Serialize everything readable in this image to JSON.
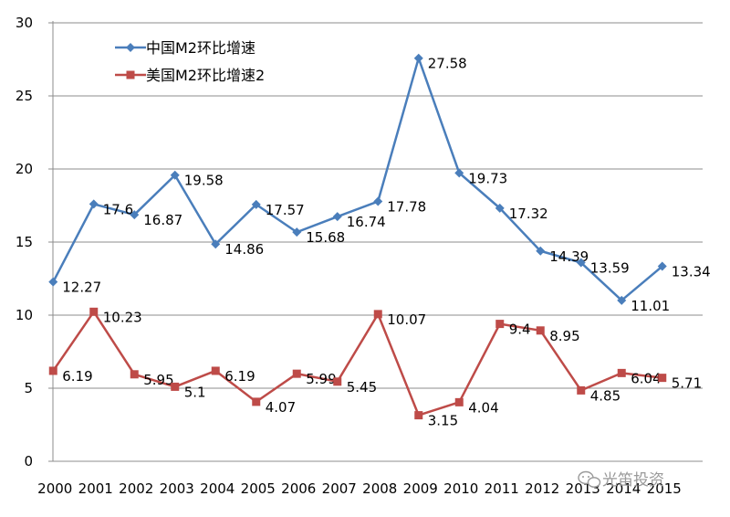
{
  "chart_data": {
    "type": "line",
    "title": "",
    "xlabel": "",
    "ylabel": "",
    "ylim": [
      0,
      30
    ],
    "yticks": [
      0,
      5,
      10,
      15,
      20,
      25,
      30
    ],
    "grid": true,
    "legend_position": "top-left",
    "categories": [
      "2000",
      "2001",
      "2002",
      "2003",
      "2004",
      "2005",
      "2006",
      "2007",
      "2008",
      "2009",
      "2010",
      "2011",
      "2012",
      "2013",
      "2014",
      "2015"
    ],
    "series": [
      {
        "name": "中国M2环比增速",
        "color": "#4A7EBB",
        "marker": "diamond",
        "values": [
          12.27,
          17.6,
          16.87,
          19.58,
          14.86,
          17.57,
          15.68,
          16.74,
          17.78,
          27.58,
          19.73,
          17.32,
          14.39,
          13.59,
          11.01,
          13.34
        ],
        "labels": [
          "12.27",
          "17.6",
          "16.87",
          "19.58",
          "14.86",
          "17.57",
          "15.68",
          "16.74",
          "17.78",
          "27.58",
          "19.73",
          "17.32",
          "14.39",
          "13.59",
          "11.01",
          "13.34"
        ]
      },
      {
        "name": "美国M2环比增速2",
        "color": "#BE4B48",
        "marker": "square",
        "values": [
          6.19,
          10.23,
          5.95,
          5.1,
          6.19,
          4.07,
          5.99,
          5.45,
          10.07,
          3.15,
          4.04,
          9.4,
          8.95,
          4.85,
          6.04,
          5.71
        ],
        "labels": [
          "6.19",
          "10.23",
          "5.95",
          "5.1",
          "6.19",
          "4.07",
          "5.99",
          "5.45",
          "10.07",
          "3.15",
          "4.04",
          "9.4",
          "8.95",
          "4.85",
          "6.04",
          "5.71"
        ]
      }
    ]
  },
  "watermark": "光笛投资",
  "watermark_icon": "wechat-icon"
}
